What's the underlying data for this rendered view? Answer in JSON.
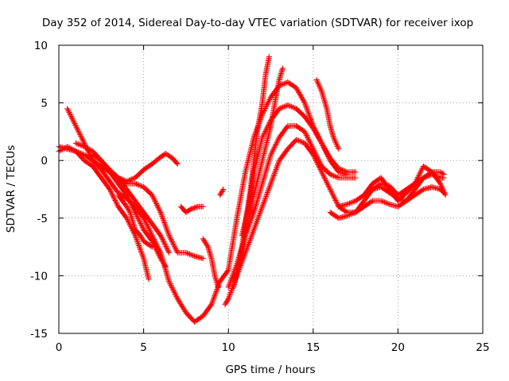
{
  "chart_data": {
    "type": "scatter",
    "title": "Day 352 of 2014, Sidereal Day-to-day VTEC variation (SDTVAR) for receiver ixop",
    "xlabel": "GPS time / hours",
    "ylabel": "SDTVAR / TECUs",
    "xlim": [
      0,
      25
    ],
    "ylim": [
      -15,
      10
    ],
    "xticks": [
      0,
      5,
      10,
      15,
      20,
      25
    ],
    "yticks": [
      10,
      5,
      0,
      -5,
      -10,
      -15
    ],
    "xtick_labels": [
      "0",
      "5",
      "10",
      "15",
      "20",
      "25"
    ],
    "ytick_labels": [
      "10",
      "5",
      "0",
      "-5",
      "-10",
      "-15"
    ],
    "grid": true,
    "marker": "+",
    "color": "#ff0000",
    "series": [
      {
        "name": "track-1",
        "points": [
          [
            0,
            1.2
          ],
          [
            0.5,
            1.0
          ],
          [
            1,
            0.8
          ],
          [
            1.5,
            0.5
          ],
          [
            2,
            0.0
          ],
          [
            2.5,
            -0.8
          ],
          [
            3,
            -1.8
          ],
          [
            3.5,
            -2.8
          ],
          [
            4,
            -3.3
          ],
          [
            4.5,
            -4.0
          ],
          [
            5,
            -5.0
          ],
          [
            5.5,
            -6.5
          ],
          [
            6,
            -8.0
          ],
          [
            6.5,
            -10.5
          ],
          [
            7,
            -12.0
          ],
          [
            7.5,
            -13.2
          ],
          [
            8,
            -14.0
          ],
          [
            8.5,
            -13.5
          ],
          [
            9,
            -12.5
          ],
          [
            9.5,
            -10.5
          ],
          [
            10,
            -9.5
          ],
          [
            10.5,
            -5.0
          ],
          [
            11,
            -1.0
          ],
          [
            11.5,
            2.0
          ],
          [
            12,
            4.0
          ],
          [
            12.5,
            5.5
          ],
          [
            13,
            6.5
          ],
          [
            13.5,
            6.8
          ],
          [
            14,
            6.3
          ],
          [
            14.5,
            5.0
          ],
          [
            15,
            3.0
          ],
          [
            15.5,
            1.5
          ],
          [
            16,
            0.2
          ],
          [
            16.5,
            -0.7
          ],
          [
            17,
            -1.0
          ],
          [
            17.5,
            -1.0
          ]
        ]
      },
      {
        "name": "track-2",
        "points": [
          [
            0,
            0.8
          ],
          [
            0.5,
            1.2
          ],
          [
            1,
            0.8
          ],
          [
            1.5,
            0.0
          ],
          [
            2,
            -0.5
          ],
          [
            2.5,
            -1.5
          ],
          [
            3,
            -2.5
          ],
          [
            3.5,
            -4.0
          ],
          [
            4,
            -5.0
          ],
          [
            4.5,
            -6.5
          ],
          [
            5,
            -8.5
          ],
          [
            5.3,
            -10.3
          ]
        ]
      },
      {
        "name": "track-3",
        "points": [
          [
            1,
            1.5
          ],
          [
            1.5,
            1.2
          ],
          [
            2,
            0.8
          ],
          [
            2.5,
            0.0
          ],
          [
            3,
            -1.0
          ],
          [
            3.5,
            -2.0
          ],
          [
            4,
            -3.0
          ],
          [
            4.5,
            -4.5
          ],
          [
            5,
            -6.0
          ],
          [
            5.5,
            -7.0
          ],
          [
            6,
            -8.5
          ],
          [
            6.3,
            -9.2
          ]
        ]
      },
      {
        "name": "track-4",
        "points": [
          [
            2,
            0.5
          ],
          [
            2.5,
            0.0
          ],
          [
            3,
            -0.8
          ],
          [
            3.5,
            -1.5
          ],
          [
            4,
            -2.5
          ],
          [
            4.5,
            -3.5
          ],
          [
            5,
            -4.5
          ],
          [
            5.5,
            -5.5
          ],
          [
            6,
            -6.5
          ],
          [
            6.5,
            -8.0
          ]
        ]
      },
      {
        "name": "track-5",
        "points": [
          [
            2.5,
            -0.5
          ],
          [
            3,
            -1.0
          ],
          [
            3.5,
            -1.5
          ],
          [
            4,
            -1.8
          ],
          [
            4.5,
            -1.5
          ],
          [
            5,
            -0.8
          ],
          [
            5.5,
            -0.3
          ],
          [
            6,
            0.3
          ],
          [
            6.3,
            0.6
          ],
          [
            6.7,
            0.2
          ],
          [
            7,
            -0.3
          ]
        ]
      },
      {
        "name": "track-6",
        "points": [
          [
            3.5,
            -3.0
          ],
          [
            4,
            -4.0
          ],
          [
            4.2,
            -4.5
          ],
          [
            4.5,
            -6.0
          ],
          [
            4.8,
            -6.5
          ],
          [
            5,
            -7.0
          ],
          [
            5.5,
            -7.5
          ]
        ]
      },
      {
        "name": "track-7",
        "points": [
          [
            0.5,
            4.5
          ],
          [
            1,
            3.0
          ],
          [
            1.5,
            1.5
          ],
          [
            2,
            0.0
          ],
          [
            2.5,
            -0.5
          ],
          [
            3,
            -1.0
          ],
          [
            3.5,
            -1.5
          ],
          [
            4,
            -2.0
          ],
          [
            4.5,
            -2.0
          ],
          [
            5,
            -2.3
          ],
          [
            5.5,
            -3.0
          ],
          [
            6,
            -4.5
          ],
          [
            6.5,
            -6.5
          ],
          [
            7,
            -8.0
          ],
          [
            7.5,
            -8.0
          ],
          [
            8,
            -8.3
          ],
          [
            8.5,
            -8.5
          ]
        ]
      },
      {
        "name": "track-8",
        "points": [
          [
            7.2,
            -4.0
          ],
          [
            7.5,
            -4.5
          ],
          [
            7.8,
            -4.2
          ],
          [
            8.2,
            -4.0
          ],
          [
            8.5,
            -4.0
          ]
        ]
      },
      {
        "name": "track-9",
        "points": [
          [
            8.5,
            -6.8
          ],
          [
            8.8,
            -7.5
          ],
          [
            9,
            -8.5
          ],
          [
            9.2,
            -10.0
          ],
          [
            9.4,
            -11.0
          ]
        ]
      },
      {
        "name": "track-10",
        "points": [
          [
            9.5,
            -3.0
          ],
          [
            9.7,
            -2.5
          ]
        ]
      },
      {
        "name": "track-11",
        "points": [
          [
            9.8,
            -12.5
          ],
          [
            10,
            -12.0
          ],
          [
            10.5,
            -10.0
          ],
          [
            11,
            -8.0
          ],
          [
            11.5,
            -6.0
          ],
          [
            12,
            -4.0
          ],
          [
            12.5,
            -2.0
          ],
          [
            13,
            0.0
          ],
          [
            13.5,
            1.0
          ],
          [
            14,
            1.8
          ],
          [
            14.5,
            1.5
          ],
          [
            15,
            0.5
          ],
          [
            15.5,
            -1.0
          ],
          [
            16,
            -2.5
          ],
          [
            16.5,
            -4.0
          ],
          [
            17,
            -4.5
          ],
          [
            17.5,
            -4.5
          ],
          [
            18,
            -4.0
          ],
          [
            18.5,
            -3.5
          ],
          [
            19,
            -3.5
          ],
          [
            19.5,
            -3.8
          ],
          [
            20,
            -4.0
          ],
          [
            20.5,
            -3.5
          ],
          [
            21,
            -2.5
          ],
          [
            21.5,
            -1.5
          ],
          [
            22,
            -1.2
          ],
          [
            22.5,
            -1.5
          ],
          [
            22.7,
            -1.5
          ]
        ]
      },
      {
        "name": "track-12",
        "points": [
          [
            10,
            -11.0
          ],
          [
            10.5,
            -9.0
          ],
          [
            11,
            -6.5
          ],
          [
            11.5,
            -4.5
          ],
          [
            12,
            -2.0
          ],
          [
            12.5,
            0.5
          ],
          [
            13,
            2.0
          ],
          [
            13.5,
            3.0
          ],
          [
            14,
            3.0
          ],
          [
            14.5,
            2.5
          ],
          [
            15,
            1.0
          ],
          [
            15.5,
            -0.5
          ],
          [
            16,
            -1.2
          ],
          [
            16.5,
            -1.5
          ],
          [
            17,
            -1.5
          ],
          [
            17.5,
            -1.5
          ]
        ]
      },
      {
        "name": "track-13",
        "points": [
          [
            10.3,
            -11.0
          ],
          [
            10.7,
            -8.5
          ],
          [
            11,
            -5.5
          ],
          [
            11.3,
            -2.5
          ],
          [
            11.5,
            0.0
          ],
          [
            11.7,
            2.5
          ],
          [
            12,
            5.0
          ],
          [
            12.2,
            7.5
          ],
          [
            12.4,
            9.0
          ]
        ]
      },
      {
        "name": "track-14",
        "points": [
          [
            10.5,
            -9.5
          ],
          [
            11,
            -6.5
          ],
          [
            11.5,
            -3.0
          ],
          [
            12,
            0.0
          ],
          [
            12.5,
            3.0
          ],
          [
            12.8,
            5.5
          ],
          [
            13,
            7.0
          ],
          [
            13.2,
            8.0
          ]
        ]
      },
      {
        "name": "track-15",
        "points": [
          [
            10.8,
            -6.5
          ],
          [
            11.2,
            -4.0
          ],
          [
            11.5,
            -1.0
          ],
          [
            12,
            2.0
          ],
          [
            12.5,
            3.5
          ],
          [
            13,
            4.5
          ],
          [
            13.5,
            4.8
          ],
          [
            14,
            4.5
          ],
          [
            14.5,
            3.8
          ],
          [
            15,
            2.8
          ],
          [
            15.5,
            1.5
          ],
          [
            16,
            0.0
          ],
          [
            16.5,
            -1.0
          ],
          [
            17,
            -1.2
          ]
        ]
      },
      {
        "name": "track-16",
        "points": [
          [
            15.2,
            7.0
          ],
          [
            15.5,
            6.0
          ],
          [
            15.8,
            4.5
          ],
          [
            16,
            3.0
          ],
          [
            16.2,
            2.0
          ],
          [
            16.5,
            1.0
          ]
        ]
      },
      {
        "name": "track-17",
        "points": [
          [
            16,
            -4.5
          ],
          [
            16.5,
            -5.0
          ],
          [
            17,
            -4.8
          ],
          [
            17.5,
            -4.5
          ],
          [
            18,
            -3.5
          ],
          [
            18.5,
            -2.5
          ],
          [
            19,
            -2.0
          ],
          [
            19.5,
            -2.2
          ],
          [
            20,
            -3.0
          ],
          [
            20.5,
            -2.5
          ],
          [
            21,
            -2.0
          ],
          [
            21.5,
            -1.5
          ],
          [
            22,
            -1.0
          ],
          [
            22.5,
            -1.0
          ],
          [
            22.7,
            -1.2
          ]
        ]
      },
      {
        "name": "track-18",
        "points": [
          [
            16.5,
            -4.0
          ],
          [
            17,
            -3.8
          ],
          [
            17.5,
            -3.5
          ],
          [
            18,
            -3.0
          ],
          [
            18.5,
            -2.5
          ],
          [
            19,
            -2.3
          ],
          [
            19.5,
            -2.8
          ],
          [
            20,
            -3.3
          ],
          [
            20.5,
            -3.5
          ],
          [
            21,
            -3.0
          ],
          [
            21.5,
            -2.5
          ],
          [
            22,
            -2.3
          ],
          [
            22.5,
            -2.5
          ],
          [
            22.7,
            -2.8
          ]
        ]
      },
      {
        "name": "track-19",
        "points": [
          [
            18,
            -3.0
          ],
          [
            18.5,
            -2.0
          ],
          [
            19,
            -1.5
          ],
          [
            19.5,
            -2.5
          ],
          [
            20,
            -3.5
          ],
          [
            20.5,
            -2.8
          ],
          [
            21,
            -2.0
          ],
          [
            21.5,
            -0.5
          ],
          [
            22,
            -1.0
          ],
          [
            22.5,
            -2.0
          ],
          [
            22.8,
            -3.0
          ]
        ]
      }
    ]
  }
}
